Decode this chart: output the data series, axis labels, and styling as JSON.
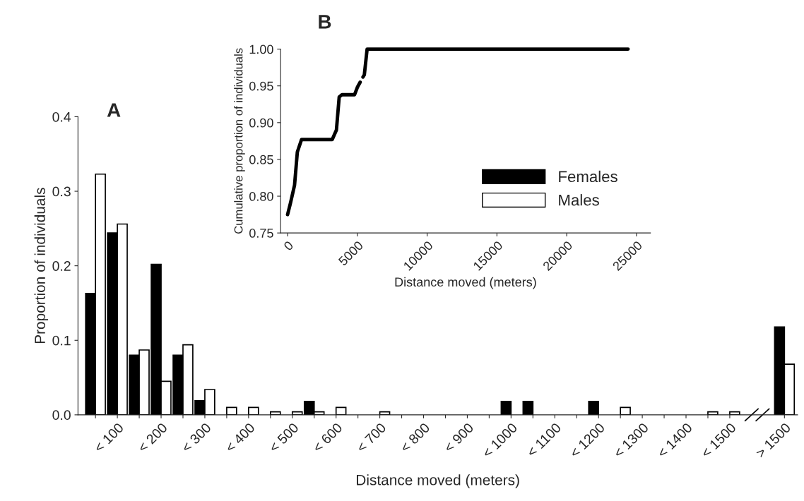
{
  "chart_data": [
    {
      "type": "bar",
      "title": "A",
      "xlabel": "Distance moved (meters)",
      "ylabel": "Proportion of individuals",
      "categories": [
        null,
        "< 100",
        null,
        "< 200",
        null,
        "< 300",
        null,
        "< 400",
        null,
        "< 500",
        null,
        "< 600",
        null,
        "< 700",
        null,
        "< 800",
        null,
        "< 900",
        null,
        "< 1000",
        null,
        "< 1100",
        null,
        "< 1200",
        null,
        "< 1300",
        null,
        "< 1400",
        null,
        "< 1500",
        "> 1500"
      ],
      "series": [
        {
          "name": "Females",
          "color": "#000000",
          "values": [
            0.163,
            0.244,
            0.08,
            0.202,
            0.08,
            0.019,
            0,
            0,
            0,
            0,
            0.018,
            0,
            0,
            0,
            0,
            0,
            0,
            0,
            0,
            0.018,
            0.018,
            0,
            0,
            0.018,
            0,
            0,
            0,
            0,
            0,
            0,
            0.118
          ]
        },
        {
          "name": "Males",
          "color": "#ffffff",
          "values": [
            0.323,
            0.256,
            0.087,
            0.045,
            0.094,
            0.034,
            0.01,
            0.01,
            0.004,
            0.004,
            0.004,
            0.01,
            0,
            0.004,
            0,
            0,
            0,
            0,
            0,
            0,
            0,
            0,
            0,
            0,
            0.01,
            0,
            0,
            0,
            0.004,
            0.004,
            0.068
          ]
        }
      ],
      "ylim": [
        0,
        0.4
      ],
      "yticks": [
        {
          "value": 0.0,
          "label": "0.0"
        },
        {
          "value": 0.1,
          "label": "0.1"
        },
        {
          "value": 0.2,
          "label": "0.2"
        },
        {
          "value": 0.3,
          "label": "0.3"
        },
        {
          "value": 0.4,
          "label": "0.4"
        }
      ],
      "legend": "top right"
    },
    {
      "type": "line",
      "title": "B",
      "xlabel": "Distance moved (meters)",
      "ylabel": "Cumulative proportion of individuals",
      "x": [
        0,
        200,
        500,
        700,
        1000,
        3200,
        3500,
        3700,
        3900,
        4800,
        5000,
        5200,
        5300,
        5400,
        5500,
        5700,
        24400
      ],
      "series": [
        {
          "color": "#000000",
          "values": [
            0.775,
            0.79,
            0.815,
            0.86,
            0.877,
            0.877,
            0.89,
            0.935,
            0.938,
            0.938,
            0.948,
            0.955,
            null,
            0.962,
            0.965,
            1.0,
            1.0
          ]
        }
      ],
      "xlim": [
        -500,
        26000
      ],
      "xticks": [
        0,
        5000,
        10000,
        15000,
        20000,
        25000
      ],
      "ylim": [
        0.75,
        1.0
      ],
      "yticks": [
        {
          "value": 0.75,
          "label": "0.75"
        },
        {
          "value": 0.8,
          "label": "0.80"
        },
        {
          "value": 0.85,
          "label": "0.85"
        },
        {
          "value": 0.9,
          "label": "0.90"
        },
        {
          "value": 0.95,
          "label": "0.95"
        },
        {
          "value": 1.0,
          "label": "1.00"
        }
      ]
    }
  ]
}
